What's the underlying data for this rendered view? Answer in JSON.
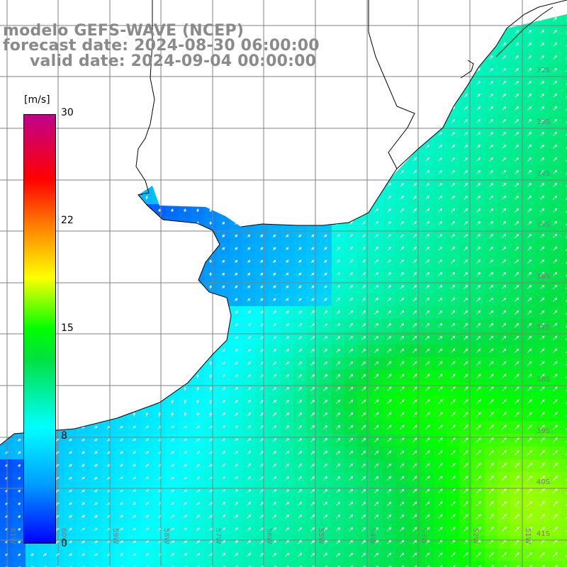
{
  "title": {
    "model": "modelo GEFS-WAVE (NCEP)",
    "forecast": "forecast date: 2024-08-30 06:00:00",
    "valid": "valid date: 2024-09-04 00:00:00"
  },
  "colorbar": {
    "unit": "[m/s]",
    "ticks": [
      "30",
      "22",
      "15",
      "8",
      "0"
    ],
    "range": [
      0,
      30
    ],
    "colors": [
      "#0000ff",
      "#00a0ff",
      "#00ffff",
      "#00ff00",
      "#ffff00",
      "#ff8000",
      "#ff0000",
      "#c0008a"
    ]
  },
  "grid": {
    "lat_labels": [
      "32S",
      "33S",
      "34S",
      "35S",
      "36S",
      "37S",
      "38S",
      "39S",
      "40S",
      "41S"
    ],
    "lon_labels": [
      "61W",
      "60W",
      "59W",
      "58W",
      "57W",
      "56W",
      "55W",
      "54W",
      "53W",
      "52W",
      "51W"
    ]
  },
  "map": {
    "variable": "wind speed",
    "arrow_color": "#ffffff",
    "coastline_color": "#000000",
    "land_color": "#ffffff"
  }
}
